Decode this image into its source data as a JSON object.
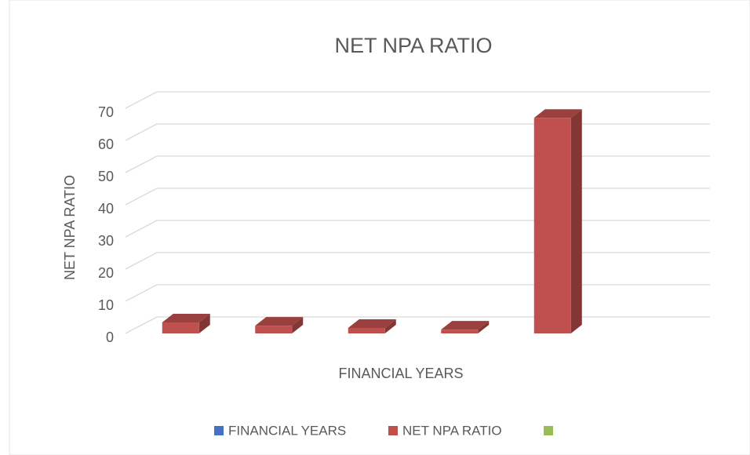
{
  "chart_data": {
    "type": "bar3d",
    "title": "NET NPA RATIO",
    "x_label": "FINANCIAL YEARS",
    "y_label": "NET NPA RATIO",
    "categories": [
      null,
      null,
      null,
      null,
      null
    ],
    "series": [
      {
        "name": "FINANCIAL YEARS",
        "color": "#4472c4",
        "values": [
          null,
          null,
          null,
          null,
          null
        ]
      },
      {
        "name": "NET NPA RATIO",
        "color": "#c0504d",
        "values": [
          3.4,
          2.4,
          1.7,
          1.2,
          67
        ]
      },
      {
        "name": null,
        "color": "#9bbb59",
        "values": [
          null,
          null,
          null,
          null,
          null
        ]
      }
    ],
    "ylim": [
      0,
      70
    ],
    "yticks": [
      0,
      10,
      20,
      30,
      40,
      50,
      60,
      70
    ],
    "grid": true,
    "legend": "bottom"
  }
}
